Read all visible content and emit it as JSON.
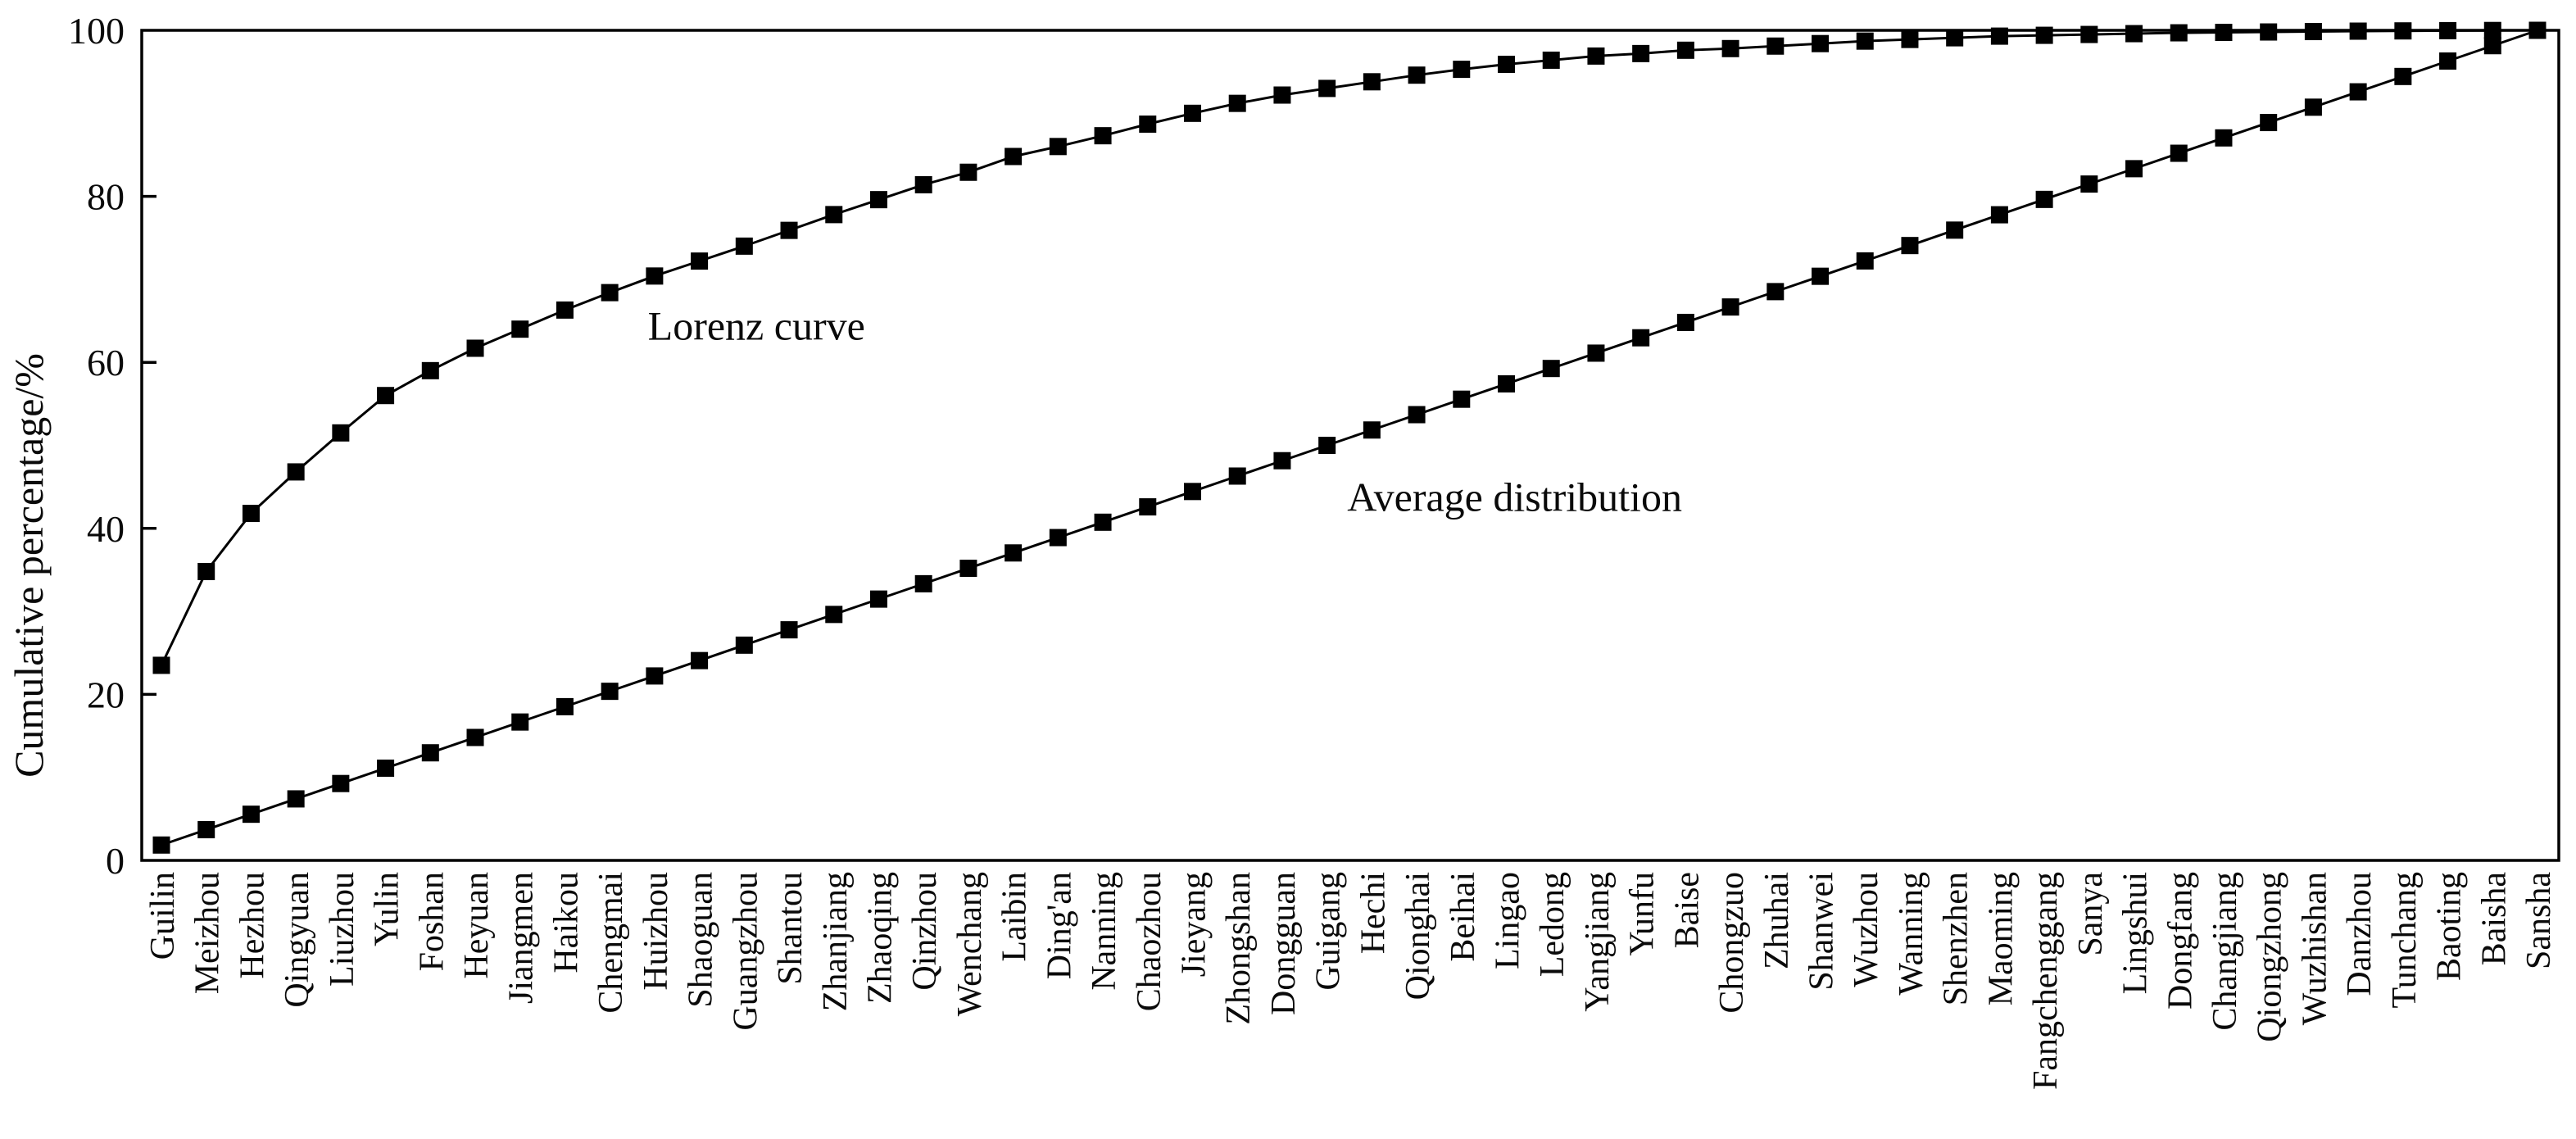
{
  "figure": {
    "background": "#ffffff",
    "ink_color": "#000000",
    "text_color": "#0a0a0a"
  },
  "chart_data": {
    "type": "line",
    "title": "",
    "xlabel": "",
    "ylabel": "Cumulative percentage/%",
    "ylim": [
      0,
      100
    ],
    "yticks": [
      0,
      20,
      40,
      60,
      80,
      100
    ],
    "grid": false,
    "legend_position": "none (inline text annotations)",
    "marker_style": "filled-black-square",
    "line_color": "#000000",
    "categories": [
      "Guilin",
      "Meizhou",
      "Hezhou",
      "Qingyuan",
      "Liuzhou",
      "Yulin",
      "Foshan",
      "Heyuan",
      "Jiangmen",
      "Haikou",
      "Chengmai",
      "Huizhou",
      "Shaoguan",
      "Guangzhou",
      "Shantou",
      "Zhanjiang",
      "Zhaoqing",
      "Qinzhou",
      "Wenchang",
      "Laibin",
      "Ding'an",
      "Nanning",
      "Chaozhou",
      "Jieyang",
      "Zhongshan",
      "Dongguan",
      "Guigang",
      "Hechi",
      "Qionghai",
      "Beihai",
      "Lingao",
      "Ledong",
      "Yangjiang",
      "Yunfu",
      "Baise",
      "Chongzuo",
      "Zhuhai",
      "Shanwei",
      "Wuzhou",
      "Wanning",
      "Shenzhen",
      "Maoming",
      "Fangchenggang",
      "Sanya",
      "Lingshui",
      "Dongfang",
      "Changjiang",
      "Qiongzhong",
      "Wuzhishan",
      "Danzhou",
      "Tunchang",
      "Baoting",
      "Baisha",
      "Sansha"
    ],
    "series": [
      {
        "name": "Lorenz curve",
        "marker": "square",
        "color": "#000000",
        "values": [
          23.5,
          34.8,
          41.8,
          46.8,
          51.5,
          56.0,
          59.0,
          61.7,
          64.0,
          66.3,
          68.4,
          70.4,
          72.2,
          74.0,
          75.9,
          77.8,
          79.6,
          81.4,
          82.9,
          84.8,
          86.0,
          87.3,
          88.7,
          90.0,
          91.2,
          92.2,
          93.0,
          93.8,
          94.6,
          95.3,
          95.9,
          96.4,
          96.9,
          97.2,
          97.6,
          97.8,
          98.1,
          98.4,
          98.7,
          98.9,
          99.1,
          99.3,
          99.4,
          99.5,
          99.6,
          99.7,
          99.75,
          99.8,
          99.85,
          99.9,
          99.93,
          99.96,
          99.98,
          100.0
        ]
      },
      {
        "name": "Average distribution",
        "marker": "square",
        "color": "#000000",
        "values": [
          1.85,
          3.7,
          5.56,
          7.41,
          9.26,
          11.11,
          12.96,
          14.81,
          16.67,
          18.52,
          20.37,
          22.22,
          24.07,
          25.93,
          27.78,
          29.63,
          31.48,
          33.33,
          35.19,
          37.04,
          38.89,
          40.74,
          42.59,
          44.44,
          46.3,
          48.15,
          50.0,
          51.85,
          53.7,
          55.56,
          57.41,
          59.26,
          61.11,
          62.96,
          64.81,
          66.67,
          68.52,
          70.37,
          72.22,
          74.07,
          75.93,
          77.78,
          79.63,
          81.48,
          83.33,
          85.19,
          87.04,
          88.89,
          90.74,
          92.59,
          94.44,
          96.3,
          98.15,
          100.0
        ]
      }
    ],
    "annotations": [
      {
        "name": "lorenz-curve-label",
        "text": "Lorenz curve",
        "at_category_index": 10.85,
        "at_value": 64.4
      },
      {
        "name": "average-distribution-label",
        "text": "Average distribution",
        "at_category_index": 26.45,
        "at_value": 43.8
      }
    ]
  }
}
